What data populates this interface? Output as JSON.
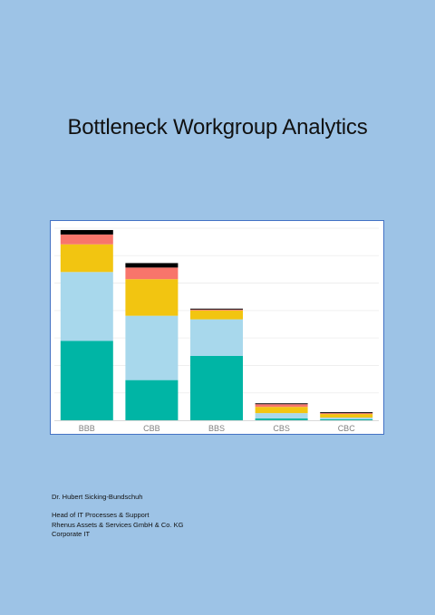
{
  "document": {
    "title": "Bottleneck Workgroup Analytics",
    "author": "Dr. Hubert Sicking-Bundschuh",
    "details": [
      "Head of IT Processes & Support",
      "Rhenus Assets & Services GmbH & Co. KG",
      "Corporate IT"
    ]
  },
  "chart_data": {
    "type": "bar",
    "stacked": true,
    "categories": [
      "BBB",
      "CBB",
      "BBS",
      "CBS",
      "CBC"
    ],
    "series": [
      {
        "color": "#00b5a5",
        "values": [
          89,
          45,
          72,
          2,
          1
        ]
      },
      {
        "color": "#a8d8ec",
        "values": [
          77,
          72,
          41,
          6,
          2
        ]
      },
      {
        "color": "#f2c511",
        "values": [
          31,
          41,
          10,
          7,
          4
        ]
      },
      {
        "color": "#f8756b",
        "values": [
          11,
          13,
          1,
          3,
          1
        ]
      },
      {
        "color": "#000000",
        "values": [
          5,
          5,
          1,
          1,
          1
        ]
      }
    ],
    "ylim": [
      0,
      215
    ],
    "grid": true,
    "legend": "none"
  }
}
